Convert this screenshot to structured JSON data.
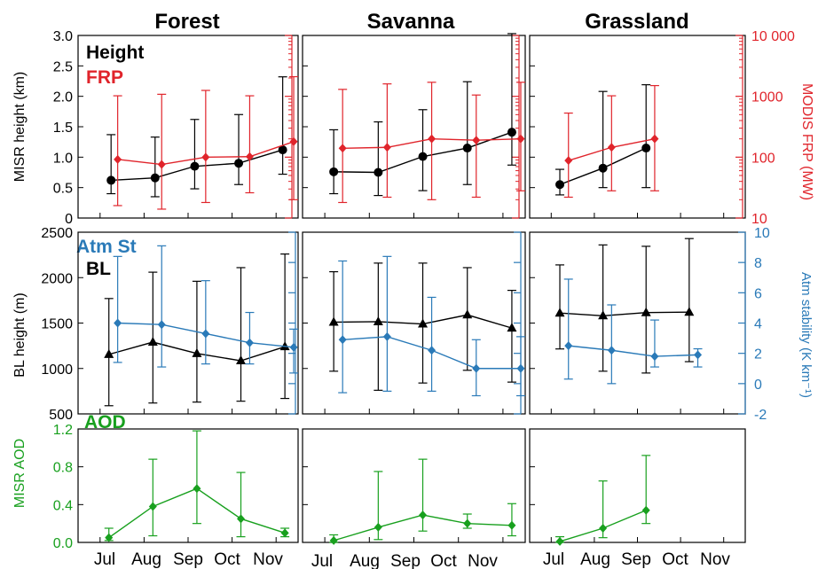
{
  "figure": {
    "columns": [
      "Forest",
      "Savanna",
      "Grassland"
    ],
    "months": [
      "Jul",
      "Aug",
      "Sep",
      "Oct",
      "Nov"
    ]
  },
  "colors": {
    "black": "#000000",
    "red": "#e0242b",
    "blue": "#2a7ab8",
    "green": "#18a01e"
  },
  "chart_data": [
    {
      "type": "line",
      "panel_row": "top",
      "title": "Forest",
      "ylabel": "MISR height (km)",
      "ylim": [
        0,
        3.0
      ],
      "yticks": [
        "0",
        "0.5",
        "1.0",
        "1.5",
        "2.0",
        "2.5",
        "3.0"
      ],
      "y2label": "MODIS FRP (MW)",
      "y2scale": "log",
      "y2lim": [
        10,
        10000
      ],
      "y2ticks": [
        "10",
        "100",
        "1000",
        "10 000"
      ],
      "legend": [
        "Height",
        "FRP"
      ],
      "series": [
        {
          "name": "Height",
          "axis": "left",
          "marker": "circle",
          "color": "#000000",
          "x": [
            0.25,
            1.25,
            2.15,
            3.15,
            4.15
          ],
          "y": [
            0.62,
            0.66,
            0.85,
            0.9,
            1.12
          ],
          "err_low": [
            0.4,
            0.35,
            0.48,
            0.55,
            0.72
          ],
          "err_high": [
            1.37,
            1.33,
            1.62,
            1.7,
            2.32
          ]
        },
        {
          "name": "FRP",
          "axis": "right",
          "marker": "diamond",
          "color": "#e0242b",
          "x": [
            0.4,
            1.4,
            2.4,
            3.4,
            4.4
          ],
          "y": [
            92,
            76,
            100,
            102,
            180
          ],
          "err_low": [
            16,
            14,
            18,
            26,
            20
          ],
          "err_high": [
            1020,
            1080,
            1250,
            1020,
            2100
          ]
        }
      ]
    },
    {
      "type": "line",
      "panel_row": "top",
      "title": "Savanna",
      "ylim": [
        0,
        3.0
      ],
      "y2scale": "log",
      "y2lim": [
        10,
        10000
      ],
      "series": [
        {
          "name": "Height",
          "axis": "left",
          "marker": "circle",
          "color": "#000000",
          "x": [
            0.2,
            1.2,
            2.2,
            3.2,
            4.2
          ],
          "y": [
            0.76,
            0.75,
            1.01,
            1.15,
            1.41
          ],
          "err_low": [
            0.4,
            0.37,
            0.45,
            0.55,
            0.87
          ],
          "err_high": [
            1.45,
            1.58,
            1.78,
            2.24,
            3.03
          ]
        },
        {
          "name": "FRP",
          "axis": "right",
          "marker": "diamond",
          "color": "#e0242b",
          "x": [
            0.4,
            1.4,
            2.4,
            3.4,
            4.4
          ],
          "y": [
            140,
            145,
            200,
            190,
            200
          ],
          "err_low": [
            18,
            22,
            20,
            22,
            28
          ],
          "err_high": [
            1300,
            1600,
            1700,
            1050,
            1700
          ]
        }
      ]
    },
    {
      "type": "line",
      "panel_row": "top",
      "title": "Grassland",
      "ylim": [
        0,
        3.0
      ],
      "y2scale": "log",
      "y2lim": [
        10,
        10000
      ],
      "series": [
        {
          "name": "Height",
          "axis": "left",
          "marker": "circle",
          "color": "#000000",
          "x": [
            0.2,
            1.2,
            2.2
          ],
          "y": [
            0.55,
            0.82,
            1.15
          ],
          "err_low": [
            0.38,
            0.5,
            0.5
          ],
          "err_high": [
            0.8,
            2.08,
            2.19
          ]
        },
        {
          "name": "FRP",
          "axis": "right",
          "marker": "diamond",
          "color": "#e0242b",
          "x": [
            0.4,
            1.4,
            2.4
          ],
          "y": [
            88,
            145,
            200
          ],
          "err_low": [
            22,
            28,
            28
          ],
          "err_high": [
            530,
            1020,
            1500
          ]
        }
      ]
    },
    {
      "type": "line",
      "panel_row": "middle",
      "title": "Forest",
      "ylabel": "BL height (m)",
      "ylim": [
        500,
        2500
      ],
      "yticks": [
        "500",
        "1000",
        "1500",
        "2000",
        "2500"
      ],
      "y2label": "Atm stability (K km⁻¹)",
      "y2lim": [
        -2,
        10
      ],
      "y2ticks": [
        "-2",
        "0",
        "2",
        "4",
        "6",
        "8",
        "10"
      ],
      "legend": [
        "Atm St",
        "BL"
      ],
      "series": [
        {
          "name": "BL",
          "axis": "left",
          "marker": "triangle",
          "color": "#000000",
          "x": [
            0.2,
            1.2,
            2.2,
            3.2,
            4.2
          ],
          "y": [
            1155,
            1290,
            1165,
            1085,
            1240
          ],
          "err_low": [
            590,
            620,
            630,
            640,
            670
          ],
          "err_high": [
            1770,
            2060,
            1960,
            2110,
            2260
          ]
        },
        {
          "name": "Atm St",
          "axis": "right",
          "marker": "diamond",
          "color": "#2a7ab8",
          "x": [
            0.4,
            1.4,
            2.4,
            3.4,
            4.4
          ],
          "y": [
            4.0,
            3.9,
            3.3,
            2.7,
            2.4
          ],
          "err_low": [
            1.4,
            1.1,
            1.3,
            1.3,
            0.7
          ],
          "err_high": [
            8.4,
            9.1,
            6.8,
            4.7,
            3.6
          ]
        }
      ]
    },
    {
      "type": "line",
      "panel_row": "middle",
      "title": "Savanna",
      "ylim": [
        500,
        2500
      ],
      "y2lim": [
        -2,
        10
      ],
      "series": [
        {
          "name": "BL",
          "axis": "left",
          "marker": "triangle",
          "color": "#000000",
          "x": [
            0.2,
            1.2,
            2.2,
            3.2,
            4.2
          ],
          "y": [
            1510,
            1515,
            1490,
            1590,
            1445
          ],
          "err_low": [
            970,
            760,
            840,
            980,
            850
          ],
          "err_high": [
            2065,
            2160,
            2160,
            2110,
            1860
          ]
        },
        {
          "name": "Atm St",
          "axis": "right",
          "marker": "diamond",
          "color": "#2a7ab8",
          "x": [
            0.4,
            1.4,
            2.4,
            3.4,
            4.4
          ],
          "y": [
            2.9,
            3.1,
            2.2,
            1.0,
            1.0
          ],
          "err_low": [
            -0.6,
            -0.5,
            -0.5,
            -0.8,
            -0.8
          ],
          "err_high": [
            8.1,
            8.4,
            5.7,
            2.9,
            3.1
          ]
        }
      ]
    },
    {
      "type": "line",
      "panel_row": "middle",
      "title": "Grassland",
      "ylim": [
        500,
        2500
      ],
      "y2lim": [
        -2,
        10
      ],
      "series": [
        {
          "name": "BL",
          "axis": "left",
          "marker": "triangle",
          "color": "#000000",
          "x": [
            0.2,
            1.2,
            2.2,
            3.2
          ],
          "y": [
            1610,
            1580,
            1615,
            1620
          ],
          "err_low": [
            1215,
            970,
            950,
            1075
          ],
          "err_high": [
            2140,
            2360,
            2345,
            2430
          ]
        },
        {
          "name": "Atm St",
          "axis": "right",
          "marker": "diamond",
          "color": "#2a7ab8",
          "x": [
            0.4,
            1.4,
            2.4,
            3.4
          ],
          "y": [
            2.5,
            2.2,
            1.8,
            1.9
          ],
          "err_low": [
            0.3,
            0.0,
            1.1,
            1.1
          ],
          "err_high": [
            6.9,
            5.2,
            4.2,
            2.3
          ]
        }
      ]
    },
    {
      "type": "line",
      "panel_row": "bottom",
      "title": "Forest",
      "ylabel": "MISR AOD",
      "ylim": [
        0,
        1.2
      ],
      "yticks": [
        "0.0",
        "0.4",
        "0.8",
        "1.2"
      ],
      "legend": [
        "AOD"
      ],
      "series": [
        {
          "name": "AOD",
          "axis": "left",
          "marker": "diamond",
          "color": "#18a01e",
          "x": [
            0.2,
            1.2,
            2.2,
            3.2,
            4.2
          ],
          "y": [
            0.05,
            0.38,
            0.57,
            0.25,
            0.1
          ],
          "err_low": [
            0.02,
            0.07,
            0.2,
            0.06,
            0.06
          ],
          "err_high": [
            0.15,
            0.88,
            1.18,
            0.74,
            0.15
          ]
        }
      ]
    },
    {
      "type": "line",
      "panel_row": "bottom",
      "title": "Savanna",
      "ylim": [
        0,
        1.2
      ],
      "series": [
        {
          "name": "AOD",
          "axis": "left",
          "marker": "diamond",
          "color": "#18a01e",
          "x": [
            0.2,
            1.2,
            2.2,
            3.2,
            4.2
          ],
          "y": [
            0.02,
            0.16,
            0.29,
            0.2,
            0.18
          ],
          "err_low": [
            0.0,
            0.03,
            0.12,
            0.15,
            0.07
          ],
          "err_high": [
            0.08,
            0.75,
            0.88,
            0.3,
            0.41
          ]
        }
      ]
    },
    {
      "type": "line",
      "panel_row": "bottom",
      "title": "Grassland",
      "ylim": [
        0,
        1.2
      ],
      "series": [
        {
          "name": "AOD",
          "axis": "left",
          "marker": "diamond",
          "color": "#18a01e",
          "x": [
            0.2,
            1.2,
            2.2
          ],
          "y": [
            0.01,
            0.15,
            0.34
          ],
          "err_low": [
            0.0,
            0.05,
            0.2
          ],
          "err_high": [
            0.06,
            0.65,
            0.92
          ]
        }
      ]
    }
  ]
}
